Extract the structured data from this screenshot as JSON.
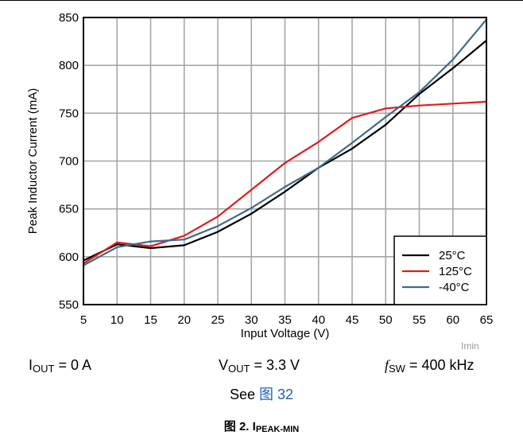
{
  "chart_data": {
    "type": "line",
    "xlabel": "Input Voltage (V)",
    "ylabel": "Peak Inductor Current (mA)",
    "xlim": [
      5,
      65
    ],
    "ylim": [
      550,
      850
    ],
    "xticks": [
      5,
      10,
      15,
      20,
      25,
      30,
      35,
      40,
      45,
      50,
      55,
      60,
      65
    ],
    "yticks": [
      550,
      600,
      650,
      700,
      750,
      800,
      850
    ],
    "grid": true,
    "legend": "bottom-right",
    "series": [
      {
        "name": "25°C",
        "color": "#000000",
        "x": [
          5,
          10,
          15,
          20,
          25,
          30,
          35,
          40,
          45,
          50,
          55,
          60,
          65
        ],
        "y": [
          596,
          613,
          609,
          612,
          626,
          645,
          668,
          693,
          713,
          738,
          770,
          797,
          826
        ]
      },
      {
        "name": "125°C",
        "color": "#e31a1c",
        "x": [
          5,
          10,
          15,
          20,
          25,
          30,
          35,
          40,
          45,
          50,
          55,
          60,
          65
        ],
        "y": [
          593,
          615,
          611,
          622,
          642,
          670,
          698,
          720,
          745,
          755,
          758,
          760,
          762
        ]
      },
      {
        "name": "-40°C",
        "color": "#3e6b8a",
        "x": [
          5,
          10,
          15,
          20,
          25,
          30,
          35,
          40,
          45,
          50,
          55,
          60,
          65
        ],
        "y": [
          591,
          610,
          616,
          618,
          632,
          651,
          673,
          693,
          719,
          746,
          772,
          806,
          848
        ]
      }
    ]
  },
  "watermark": "Imin",
  "conditions": {
    "iout": {
      "sym": "I",
      "sub": "OUT",
      "val": " = 0 A"
    },
    "vout": {
      "sym": "V",
      "sub": "OUT",
      "val": " = 3.3 V"
    },
    "fsw": {
      "sym": "f",
      "sub": "SW",
      "val": " = 400 kHz"
    }
  },
  "see": {
    "prefix": "See ",
    "link": "图 32"
  },
  "caption": {
    "prefix": "图 2. I",
    "sub": "PEAK-MIN"
  }
}
